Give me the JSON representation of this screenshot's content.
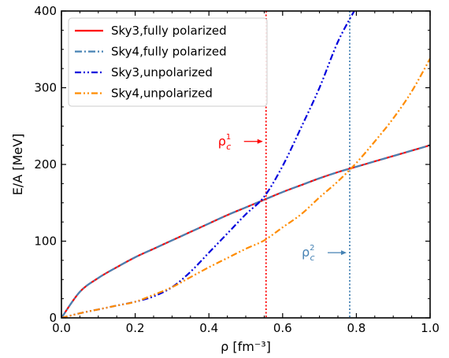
{
  "chart_data": {
    "type": "line",
    "xlabel": "ρ [fm⁻³]",
    "ylabel": "E/A [MeV]",
    "xlim": [
      0.0,
      1.0
    ],
    "ylim": [
      0,
      400
    ],
    "xticks": [
      "0.0",
      "0.2",
      "0.4",
      "0.6",
      "0.8",
      "1.0"
    ],
    "yticks": [
      "0",
      "100",
      "200",
      "300",
      "400"
    ],
    "grid": false,
    "legend_position": "top-left",
    "x": [
      0.0,
      0.05,
      0.1,
      0.15,
      0.2,
      0.25,
      0.3,
      0.35,
      0.4,
      0.45,
      0.5,
      0.55,
      0.6,
      0.65,
      0.7,
      0.75,
      0.8,
      0.85,
      0.9,
      0.95,
      1.0
    ],
    "series": [
      {
        "name": "Sky3,fully polarized",
        "color": "#ff0000",
        "style": "solid",
        "values": [
          0,
          34,
          52,
          66,
          79,
          90,
          101,
          112,
          123,
          134,
          144,
          154,
          164,
          173,
          182,
          190,
          197,
          204,
          211,
          218,
          225
        ]
      },
      {
        "name": "Sky4,fully polarized",
        "color": "#4682b4",
        "style": "dashdot",
        "values": [
          0,
          34,
          52,
          66,
          79,
          90,
          101,
          112,
          123,
          134,
          144,
          154,
          164,
          173,
          182,
          190,
          197,
          204,
          211,
          218,
          225
        ]
      },
      {
        "name": "Sky3,unpolarized",
        "color": "#0000dd",
        "style": "dashdotdot",
        "values": [
          0,
          6,
          11,
          16,
          21,
          28,
          40,
          60,
          85,
          110,
          135,
          158,
          198,
          248,
          300,
          360,
          405,
          null,
          null,
          null,
          null
        ]
      },
      {
        "name": "Sky4,unpolarized",
        "color": "#ff8c00",
        "style": "dashdotdot",
        "values": [
          0,
          6,
          11,
          16,
          21,
          30,
          40,
          53,
          66,
          78,
          90,
          101,
          118,
          135,
          157,
          178,
          202,
          230,
          260,
          295,
          338
        ]
      }
    ],
    "vlines": [
      {
        "x": 0.555,
        "color": "#ff0000",
        "label": "ρ",
        "sup": "1",
        "sub": "c",
        "arrow_y": 230
      },
      {
        "x": 0.782,
        "color": "#4682b4",
        "label": "ρ",
        "sup": "2",
        "sub": "c",
        "arrow_y": 85
      }
    ]
  }
}
